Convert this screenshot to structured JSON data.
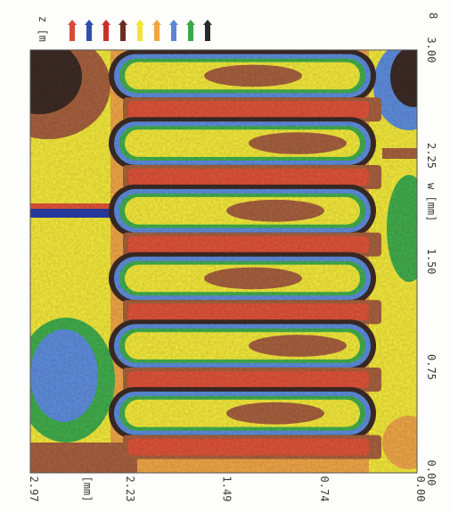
{
  "chart_data": {
    "type": "heatmap",
    "x_axis": {
      "label": "w [mm]",
      "ticks": [
        "0.00",
        "0.75",
        "1.50",
        "2.25",
        "3.00"
      ],
      "range": [
        0.0,
        3.0
      ]
    },
    "y_axis": {
      "label": "[mm]",
      "ticks": [
        "0.00",
        "0.74",
        "1.49",
        "2.23",
        "2.97"
      ],
      "range": [
        0.0,
        2.97
      ]
    },
    "z_label": "z [m",
    "colorbar_end_label": "8",
    "colorbar_colors": [
      "#d84a3a",
      "#2f4fb0",
      "#c83228",
      "#6b2e24",
      "#f2e33a",
      "#f0a640",
      "#5a86d6",
      "#39a84a",
      "#2a2a2a"
    ],
    "palette": {
      "dark": "#3d2b26",
      "blue": "#5f8fe0",
      "green": "#42b04d",
      "yellow": "#f6ec3c",
      "orange": "#f3a948",
      "brown": "#a9623f",
      "red": "#e2543a",
      "navy": "#2a3da8"
    },
    "strips": {
      "orientation": "horizontal bands along w",
      "count": 12,
      "pattern": [
        "dark-ring",
        "red",
        "dark-ring",
        "red",
        "dark-ring",
        "red",
        "dark-ring",
        "red",
        "dark-ring",
        "red",
        "dark-ring",
        "red"
      ]
    },
    "grid": false
  }
}
